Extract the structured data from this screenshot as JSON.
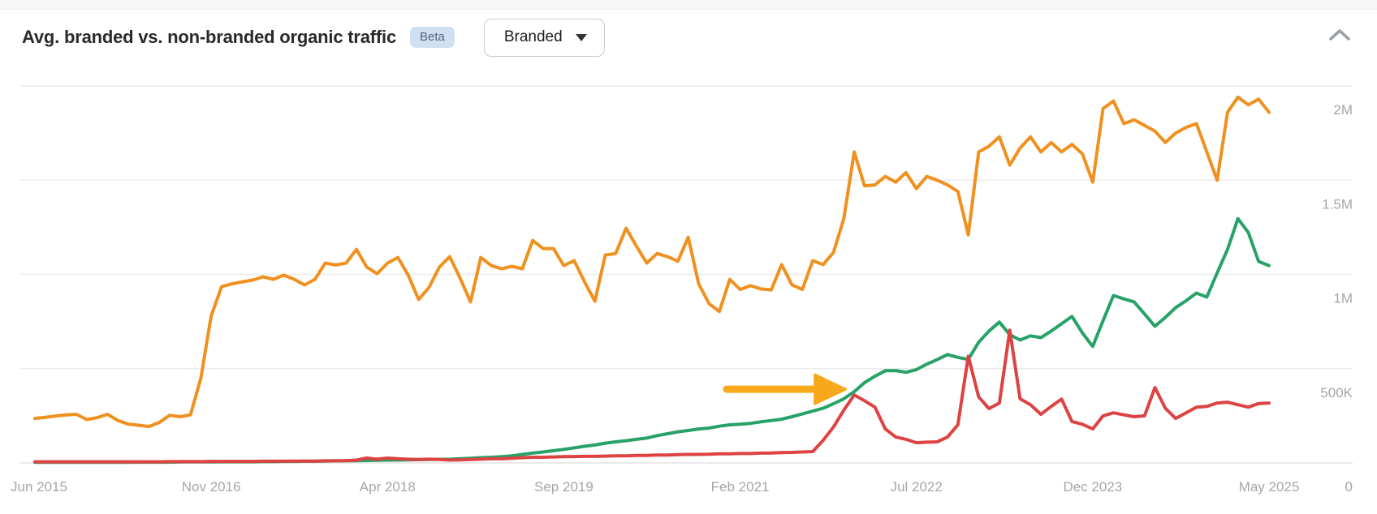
{
  "header": {
    "title": "Avg. branded vs. non-branded organic traffic",
    "beta_badge": "Beta",
    "mode_dropdown": {
      "value": "Branded"
    },
    "icons": {
      "dropdown_caret": "caret-down-triangle",
      "collapse": "chevron-up"
    }
  },
  "colors": {
    "orange_line": "#f0911f",
    "green_line": "#27a268",
    "red_line": "#dd4343",
    "arrow_annotation": "#f8a91b",
    "gridline": "#ececec",
    "baseline": "#e2e2e2",
    "axis_label": "#a2a7ac",
    "title_text": "#2a2a2a",
    "beta_badge_bg": "#d0e0f2",
    "beta_badge_text": "#51677f"
  },
  "chart_data": {
    "type": "line",
    "title": "Avg. branded vs. non-branded organic traffic",
    "unit": "thousands of monthly organic visits",
    "grid": true,
    "legend": "none",
    "x_axis": {
      "start": "Jun 2015",
      "end": "May 2025",
      "interval": "monthly",
      "points": 120,
      "ticks": [
        {
          "label": "Jun 2015",
          "month_index": 0
        },
        {
          "label": "Nov 2016",
          "month_index": 17
        },
        {
          "label": "Apr 2018",
          "month_index": 34
        },
        {
          "label": "Sep 2019",
          "month_index": 51
        },
        {
          "label": "Feb 2021",
          "month_index": 68
        },
        {
          "label": "Jul 2022",
          "month_index": 85
        },
        {
          "label": "Dec 2023",
          "month_index": 102
        },
        {
          "label": "May 2025",
          "month_index": 119
        }
      ]
    },
    "y_axis": {
      "position": "right",
      "min_k": 0,
      "max_k": 2000,
      "ticks": [
        {
          "label": "2M",
          "value_k": 2000
        },
        {
          "label": "1.5M",
          "value_k": 1500
        },
        {
          "label": "1M",
          "value_k": 1000
        },
        {
          "label": "500K",
          "value_k": 500
        },
        {
          "label": "0",
          "value_k": 0
        }
      ]
    },
    "series": [
      {
        "name": "orange-line",
        "color": "#f0911f",
        "values_k": [
          236,
          242,
          249,
          255,
          258,
          230,
          240,
          258,
          225,
          206,
          200,
          193,
          215,
          253,
          245,
          255,
          450,
          780,
          935,
          950,
          961,
          970,
          987,
          974,
          996,
          974,
          944,
          974,
          1060,
          1050,
          1060,
          1133,
          1039,
          1004,
          1060,
          1090,
          996,
          867,
          931,
          1039,
          1094,
          980,
          854,
          1090,
          1047,
          1030,
          1043,
          1030,
          1180,
          1137,
          1137,
          1047,
          1073,
          960,
          858,
          1103,
          1111,
          1245,
          1150,
          1060,
          1111,
          1094,
          1070,
          1197,
          950,
          845,
          803,
          974,
          920,
          940,
          923,
          918,
          1052,
          945,
          920,
          1073,
          1052,
          1116,
          1296,
          1650,
          1470,
          1475,
          1520,
          1490,
          1540,
          1455,
          1520,
          1500,
          1475,
          1440,
          1210,
          1650,
          1680,
          1730,
          1580,
          1670,
          1730,
          1650,
          1700,
          1650,
          1690,
          1640,
          1490,
          1880,
          1920,
          1800,
          1820,
          1790,
          1760,
          1700,
          1750,
          1780,
          1800,
          1650,
          1500,
          1860,
          1940,
          1900,
          1930,
          1860
        ]
      },
      {
        "name": "green-line",
        "color": "#27a268",
        "values_k": [
          3,
          3,
          3,
          3,
          3,
          3,
          3,
          3,
          3,
          3,
          4,
          4,
          4,
          4,
          5,
          5,
          5,
          5,
          6,
          6,
          6,
          6,
          7,
          7,
          8,
          8,
          9,
          9,
          10,
          11,
          12,
          12,
          13,
          14,
          15,
          15,
          16,
          17,
          18,
          19,
          20,
          22,
          25,
          28,
          30,
          33,
          38,
          45,
          52,
          58,
          65,
          72,
          80,
          88,
          95,
          105,
          112,
          118,
          125,
          132,
          145,
          155,
          165,
          172,
          180,
          185,
          195,
          202,
          205,
          210,
          218,
          225,
          232,
          245,
          260,
          275,
          290,
          314,
          340,
          378,
          426,
          460,
          489,
          490,
          481,
          495,
          524,
          548,
          575,
          560,
          549,
          640,
          700,
          747,
          680,
          652,
          674,
          665,
          700,
          738,
          777,
          690,
          618,
          755,
          888,
          870,
          854,
          790,
          725,
          772,
          824,
          860,
          901,
          880,
          1008,
          1133,
          1296,
          1223,
          1069,
          1047
        ]
      },
      {
        "name": "red-line",
        "color": "#dd4343",
        "values_k": [
          6,
          6,
          6,
          6,
          6,
          6,
          6,
          6,
          6,
          6,
          6,
          6,
          6,
          7,
          7,
          7,
          7,
          8,
          8,
          8,
          8,
          8,
          9,
          9,
          9,
          10,
          10,
          10,
          11,
          11,
          12,
          15,
          26,
          20,
          26,
          22,
          20,
          18,
          20,
          18,
          15,
          16,
          18,
          20,
          22,
          22,
          25,
          28,
          30,
          30,
          32,
          33,
          34,
          35,
          35,
          36,
          38,
          38,
          40,
          40,
          42,
          42,
          44,
          45,
          45,
          46,
          48,
          48,
          50,
          50,
          52,
          53,
          55,
          56,
          58,
          60,
          120,
          190,
          280,
          360,
          330,
          296,
          180,
          137,
          125,
          107,
          110,
          112,
          137,
          202,
          566,
          350,
          288,
          318,
          704,
          340,
          309,
          258,
          300,
          339,
          220,
          205,
          180,
          250,
          266,
          255,
          245,
          250,
          400,
          290,
          236,
          266,
          296,
          300,
          318,
          322,
          309,
          296,
          315,
          318
        ]
      }
    ],
    "annotation": {
      "shape": "arrow-right",
      "color": "#f8a91b",
      "from_month_index": 66.7,
      "to_month_index": 78.1,
      "value_k": 391,
      "meaning": "points at green line as it rises past ~400K in late 2021"
    }
  }
}
